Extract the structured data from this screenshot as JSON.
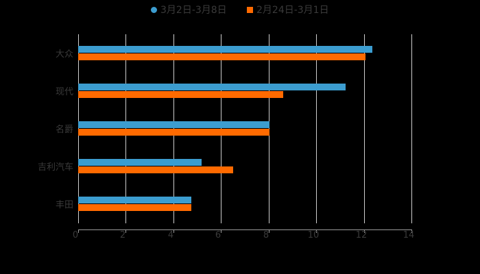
{
  "chart_data": {
    "type": "bar",
    "orientation": "horizontal",
    "title": "",
    "xlabel": "",
    "ylabel": "",
    "categories": [
      "大众",
      "现代",
      "名爵",
      "吉利汽车",
      "丰田"
    ],
    "series": [
      {
        "name": "3月2日-3月8日",
        "color": "#3c9dd0",
        "marker": "circle",
        "values": [
          12.36,
          11.24,
          8.04,
          5.19,
          4.75
        ]
      },
      {
        "name": "2月24日-3月1日",
        "color": "#ff6a00",
        "marker": "square",
        "values": [
          12.07,
          8.61,
          8.04,
          6.51,
          4.75
        ]
      }
    ],
    "xlim": [
      0,
      14
    ],
    "xticks": [
      "0",
      "2",
      "4",
      "6",
      "8",
      "10",
      "12",
      "14"
    ],
    "grid": true,
    "legend_position": "top"
  },
  "legend": {
    "items": [
      {
        "label": "3月2日-3月8日",
        "color": "#3c9dd0"
      },
      {
        "label": "2月24日-3月1日",
        "color": "#ff6a00"
      }
    ]
  }
}
